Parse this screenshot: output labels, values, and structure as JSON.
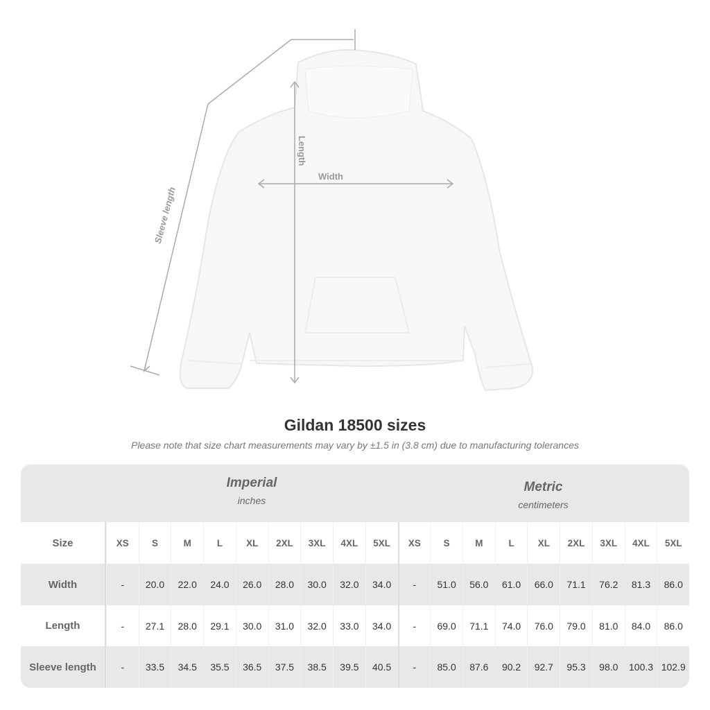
{
  "diagram": {
    "labels": {
      "sleeve": "Sleeve length",
      "length": "Length",
      "width": "Width"
    }
  },
  "title": "Gildan 18500 sizes",
  "note": "Please note that size chart measurements may vary by ±1.5 in (3.8 cm) due to manufacturing tolerances",
  "table": {
    "imperial": {
      "title": "Imperial",
      "unit": "inches"
    },
    "metric": {
      "title": "Metric",
      "unit": "centimeters"
    },
    "header": [
      "Size",
      "XS",
      "S",
      "M",
      "L",
      "XL",
      "2XL",
      "3XL",
      "4XL",
      "5XL",
      "XS",
      "S",
      "M",
      "L",
      "XL",
      "2XL",
      "3XL",
      "4XL",
      "5XL"
    ],
    "rows": [
      [
        "Width",
        "-",
        "20.0",
        "22.0",
        "24.0",
        "26.0",
        "28.0",
        "30.0",
        "32.0",
        "34.0",
        "-",
        "51.0",
        "56.0",
        "61.0",
        "66.0",
        "71.1",
        "76.2",
        "81.3",
        "86.0"
      ],
      [
        "Length",
        "-",
        "27.1",
        "28.0",
        "29.1",
        "30.0",
        "31.0",
        "32.0",
        "33.0",
        "34.0",
        "-",
        "69.0",
        "71.1",
        "74.0",
        "76.0",
        "79.0",
        "81.0",
        "84.0",
        "86.0"
      ],
      [
        "Sleeve length",
        "-",
        "33.5",
        "34.5",
        "35.5",
        "36.5",
        "37.5",
        "38.5",
        "39.5",
        "40.5",
        "-",
        "85.0",
        "87.6",
        "90.2",
        "92.7",
        "95.3",
        "98.0",
        "100.3",
        "102.9"
      ]
    ]
  }
}
